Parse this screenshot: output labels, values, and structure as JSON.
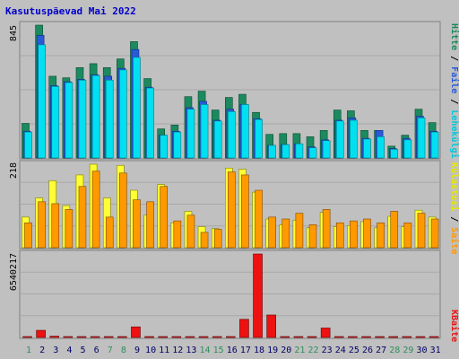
{
  "window": {
    "title": "Kasutuspäevad Mai 2022"
  },
  "colors": {
    "background": "#c0c0c0",
    "hits": "#1b8a5e",
    "files": "#2a5ad8",
    "pages": "#00e0f0",
    "visits": "#ffff33",
    "sites": "#ff9900",
    "kbytes": "#ee1111",
    "weekend_label": "#2f8f5f",
    "weekday_label": "#000066"
  },
  "chart_data": [
    {
      "type": "bar",
      "panel": "top",
      "ymax_label": "845",
      "x": [
        1,
        2,
        3,
        4,
        5,
        6,
        7,
        8,
        9,
        10,
        11,
        12,
        13,
        14,
        15,
        16,
        17,
        18,
        19,
        20,
        21,
        22,
        23,
        24,
        25,
        26,
        27,
        28,
        29,
        30,
        31
      ],
      "series": [
        {
          "name": "Hitte",
          "values": [
            220,
            845,
            520,
            510,
            575,
            600,
            575,
            630,
            740,
            505,
            185,
            210,
            390,
            425,
            305,
            385,
            405,
            290,
            150,
            155,
            155,
            135,
            175,
            305,
            300,
            175,
            175,
            75,
            145,
            310,
            225
          ]
        },
        {
          "name": "Faile",
          "values": [
            170,
            780,
            460,
            485,
            500,
            530,
            520,
            570,
            690,
            450,
            145,
            170,
            320,
            360,
            240,
            310,
            340,
            250,
            80,
            85,
            90,
            70,
            115,
            240,
            255,
            125,
            175,
            60,
            125,
            265,
            170
          ]
        },
        {
          "name": "Lehekülgi",
          "values": [
            165,
            720,
            455,
            480,
            495,
            525,
            495,
            560,
            640,
            445,
            145,
            165,
            310,
            340,
            235,
            295,
            340,
            245,
            80,
            85,
            90,
            65,
            110,
            235,
            240,
            120,
            135,
            55,
            115,
            255,
            165
          ]
        }
      ]
    },
    {
      "type": "bar",
      "panel": "middle",
      "ymax_label": "218",
      "x": [
        1,
        2,
        3,
        4,
        5,
        6,
        7,
        8,
        9,
        10,
        11,
        12,
        13,
        14,
        15,
        16,
        17,
        18,
        19,
        20,
        21,
        22,
        23,
        24,
        25,
        26,
        27,
        28,
        29,
        30,
        31
      ],
      "series": [
        {
          "name": "Külastusi",
          "values": [
            80,
            130,
            175,
            110,
            190,
            218,
            130,
            215,
            150,
            85,
            165,
            65,
            95,
            55,
            50,
            208,
            205,
            145,
            75,
            60,
            72,
            52,
            92,
            55,
            58,
            68,
            52,
            82,
            55,
            98,
            80
          ]
        },
        {
          "name": "Saite",
          "values": [
            65,
            120,
            115,
            100,
            160,
            200,
            80,
            195,
            125,
            120,
            160,
            70,
            85,
            40,
            48,
            198,
            190,
            150,
            80,
            75,
            90,
            60,
            100,
            65,
            70,
            75,
            65,
            95,
            65,
            90,
            75
          ]
        }
      ]
    },
    {
      "type": "bar",
      "panel": "bottom",
      "ymax_label": "6540217",
      "x": [
        1,
        2,
        3,
        4,
        5,
        6,
        7,
        8,
        9,
        10,
        11,
        12,
        13,
        14,
        15,
        16,
        17,
        18,
        19,
        20,
        21,
        22,
        23,
        24,
        25,
        26,
        27,
        28,
        29,
        30,
        31
      ],
      "series": [
        {
          "name": "KBaite",
          "values": [
            60000,
            560000,
            100000,
            40000,
            50000,
            60000,
            30000,
            50000,
            830000,
            50000,
            40000,
            30000,
            40000,
            20000,
            30000,
            60000,
            1420000,
            6540217,
            1760000,
            50000,
            60000,
            40000,
            740000,
            60000,
            60000,
            30000,
            40000,
            30000,
            40000,
            50000,
            60000
          ]
        }
      ]
    }
  ],
  "days": [
    "1",
    "2",
    "3",
    "4",
    "5",
    "6",
    "7",
    "8",
    "9",
    "10",
    "11",
    "12",
    "13",
    "14",
    "15",
    "16",
    "17",
    "18",
    "19",
    "20",
    "21",
    "22",
    "23",
    "24",
    "25",
    "26",
    "27",
    "28",
    "29",
    "30",
    "31"
  ],
  "weekend_days": [
    1,
    7,
    8,
    14,
    15,
    21,
    22,
    28,
    29
  ],
  "legend_top": {
    "hits": "Hitte",
    "sep1": " / ",
    "files": "Faile",
    "sep2": " / ",
    "pages": "Lehekülgi"
  },
  "legend_mid": {
    "visits": "Külastusi",
    "sep1": " / ",
    "sites": "Saite"
  },
  "legend_bot": {
    "kbytes": "KBaite"
  }
}
